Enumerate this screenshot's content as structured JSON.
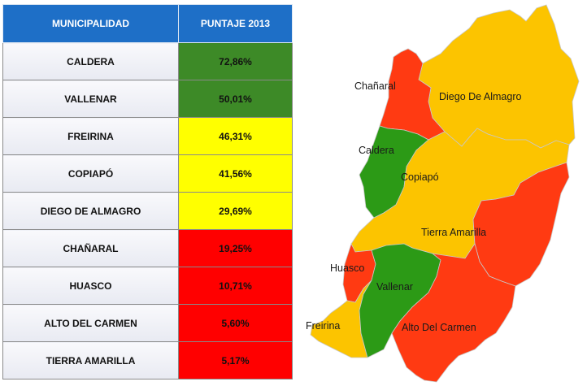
{
  "table": {
    "headers": {
      "municipality": "MUNICIPALIDAD",
      "score": "PUNTAJE 2013"
    },
    "rows": [
      {
        "name": "CALDERA",
        "score": "72,86%",
        "color": "#3d8a27"
      },
      {
        "name": "VALLENAR",
        "score": "50,01%",
        "color": "#3d8a27"
      },
      {
        "name": "FREIRINA",
        "score": "46,31%",
        "color": "#ffff00"
      },
      {
        "name": "COPIAPÓ",
        "score": "41,56%",
        "color": "#ffff00"
      },
      {
        "name": "DIEGO DE ALMAGRO",
        "score": "29,69%",
        "color": "#ffff00"
      },
      {
        "name": "CHAÑARAL",
        "score": "19,25%",
        "color": "#ff0000"
      },
      {
        "name": "HUASCO",
        "score": "10,71%",
        "color": "#ff0000"
      },
      {
        "name": "ALTO DEL CARMEN",
        "score": "5,60%",
        "color": "#ff0000"
      },
      {
        "name": "TIERRA AMARILLA",
        "score": "5,17%",
        "color": "#ff0000"
      }
    ]
  },
  "map": {
    "colors": {
      "green": "#2c9a16",
      "yellow": "#fcc400",
      "red": "#ff3a12"
    },
    "labels": {
      "chanaral": "Chañaral",
      "diego_de_almagro": "Diego De Almagro",
      "caldera": "Caldera",
      "copiapo": "Copiapó",
      "tierra_amarilla": "Tierra Amarilla",
      "huasco": "Huasco",
      "vallenar": "Vallenar",
      "freirina": "Freirina",
      "alto_del_carmen": "Alto Del Carmen"
    }
  }
}
